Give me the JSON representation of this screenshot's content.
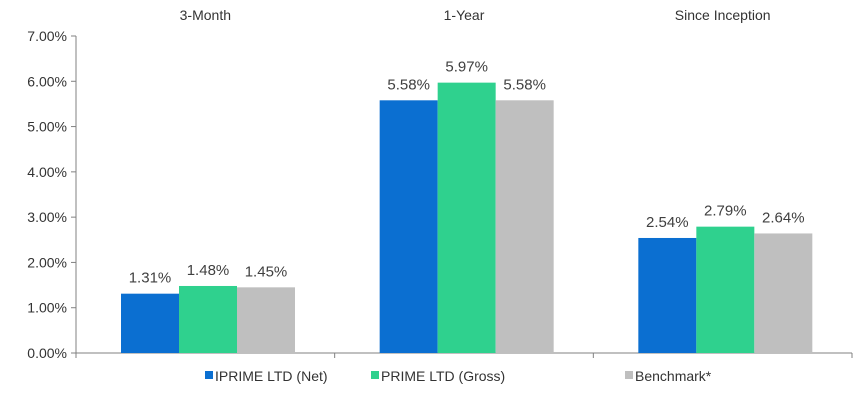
{
  "chart_data": {
    "type": "bar",
    "title": "",
    "xlabel": "",
    "ylabel": "",
    "categories": [
      "3-Month",
      "1-Year",
      "Since Inception"
    ],
    "series": [
      {
        "name": "IPRIME LTD (Net)",
        "color": "#0b6fd1",
        "values": [
          1.31,
          5.58,
          2.54
        ],
        "labels": [
          "1.31%",
          "5.58%",
          "2.54%"
        ]
      },
      {
        "name": "PRIME LTD  (Gross)",
        "color": "#2fd18e",
        "values": [
          1.48,
          5.97,
          2.79
        ],
        "labels": [
          "1.48%",
          "5.97%",
          "2.79%"
        ]
      },
      {
        "name": "Benchmark*",
        "color": "#bfbfbf",
        "values": [
          1.45,
          5.58,
          2.64
        ],
        "labels": [
          "1.45%",
          "5.58%",
          "2.64%"
        ]
      }
    ],
    "ylim": [
      0,
      7
    ],
    "yticks": [
      0,
      1,
      2,
      3,
      4,
      5,
      6,
      7
    ],
    "ytick_labels": [
      "0.00%",
      "1.00%",
      "2.00%",
      "3.00%",
      "4.00%",
      "5.00%",
      "6.00%",
      "7.00%"
    ],
    "grid": false,
    "category_labels_position": "top",
    "legend_position": "bottom"
  }
}
